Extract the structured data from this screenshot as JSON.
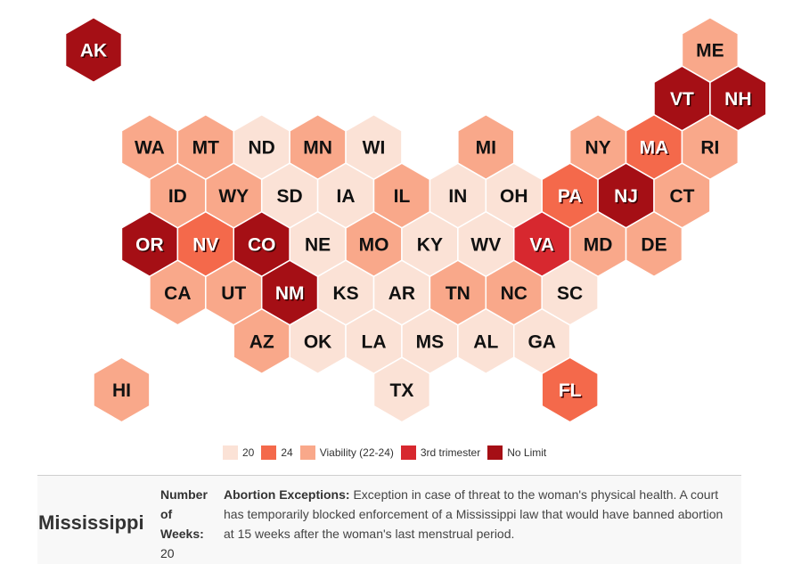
{
  "colors": {
    "20": "#fbe2d6",
    "24": "#f4694b",
    "viability": "#f9a88a",
    "third": "#d7282f",
    "nolimit": "#a50f15"
  },
  "map": {
    "states": [
      {
        "abbr": "AK",
        "cat": "nolimit",
        "row": -1,
        "col": 0
      },
      {
        "abbr": "ME",
        "cat": "viability",
        "row": 0,
        "col": 11
      },
      {
        "abbr": "VT",
        "cat": "nolimit",
        "row": 1,
        "col": 10
      },
      {
        "abbr": "NH",
        "cat": "nolimit",
        "row": 1,
        "col": 11
      },
      {
        "abbr": "WA",
        "cat": "viability",
        "row": 2,
        "col": 1
      },
      {
        "abbr": "MT",
        "cat": "viability",
        "row": 2,
        "col": 2
      },
      {
        "abbr": "ND",
        "cat": "20",
        "row": 2,
        "col": 3
      },
      {
        "abbr": "MN",
        "cat": "viability",
        "row": 2,
        "col": 4
      },
      {
        "abbr": "WI",
        "cat": "20",
        "row": 2,
        "col": 5
      },
      {
        "abbr": "MI",
        "cat": "viability",
        "row": 2,
        "col": 7
      },
      {
        "abbr": "NY",
        "cat": "viability",
        "row": 2,
        "col": 9
      },
      {
        "abbr": "MA",
        "cat": "24",
        "row": 2,
        "col": 10
      },
      {
        "abbr": "RI",
        "cat": "viability",
        "row": 2,
        "col": 11
      },
      {
        "abbr": "ID",
        "cat": "viability",
        "row": 3,
        "col": 1
      },
      {
        "abbr": "WY",
        "cat": "viability",
        "row": 3,
        "col": 2
      },
      {
        "abbr": "SD",
        "cat": "20",
        "row": 3,
        "col": 3
      },
      {
        "abbr": "IA",
        "cat": "20",
        "row": 3,
        "col": 4
      },
      {
        "abbr": "IL",
        "cat": "viability",
        "row": 3,
        "col": 5
      },
      {
        "abbr": "IN",
        "cat": "20",
        "row": 3,
        "col": 6
      },
      {
        "abbr": "OH",
        "cat": "20",
        "row": 3,
        "col": 7
      },
      {
        "abbr": "PA",
        "cat": "24",
        "row": 3,
        "col": 8
      },
      {
        "abbr": "NJ",
        "cat": "nolimit",
        "row": 3,
        "col": 9
      },
      {
        "abbr": "CT",
        "cat": "viability",
        "row": 3,
        "col": 10
      },
      {
        "abbr": "OR",
        "cat": "nolimit",
        "row": 4,
        "col": 1
      },
      {
        "abbr": "NV",
        "cat": "24",
        "row": 4,
        "col": 2
      },
      {
        "abbr": "CO",
        "cat": "nolimit",
        "row": 4,
        "col": 3
      },
      {
        "abbr": "NE",
        "cat": "20",
        "row": 4,
        "col": 4
      },
      {
        "abbr": "MO",
        "cat": "viability",
        "row": 4,
        "col": 5
      },
      {
        "abbr": "KY",
        "cat": "20",
        "row": 4,
        "col": 6
      },
      {
        "abbr": "WV",
        "cat": "20",
        "row": 4,
        "col": 7
      },
      {
        "abbr": "VA",
        "cat": "third",
        "row": 4,
        "col": 8
      },
      {
        "abbr": "MD",
        "cat": "viability",
        "row": 4,
        "col": 9
      },
      {
        "abbr": "DE",
        "cat": "viability",
        "row": 4,
        "col": 10
      },
      {
        "abbr": "CA",
        "cat": "viability",
        "row": 5,
        "col": 1
      },
      {
        "abbr": "UT",
        "cat": "viability",
        "row": 5,
        "col": 2
      },
      {
        "abbr": "NM",
        "cat": "nolimit",
        "row": 5,
        "col": 3
      },
      {
        "abbr": "KS",
        "cat": "20",
        "row": 5,
        "col": 4
      },
      {
        "abbr": "AR",
        "cat": "20",
        "row": 5,
        "col": 5
      },
      {
        "abbr": "TN",
        "cat": "viability",
        "row": 5,
        "col": 6
      },
      {
        "abbr": "NC",
        "cat": "viability",
        "row": 5,
        "col": 7
      },
      {
        "abbr": "SC",
        "cat": "20",
        "row": 5,
        "col": 8
      },
      {
        "abbr": "AZ",
        "cat": "viability",
        "row": 6,
        "col": 3
      },
      {
        "abbr": "OK",
        "cat": "20",
        "row": 6,
        "col": 4
      },
      {
        "abbr": "LA",
        "cat": "20",
        "row": 6,
        "col": 5
      },
      {
        "abbr": "MS",
        "cat": "20",
        "row": 6,
        "col": 6
      },
      {
        "abbr": "AL",
        "cat": "20",
        "row": 6,
        "col": 7
      },
      {
        "abbr": "GA",
        "cat": "20",
        "row": 6,
        "col": 8
      },
      {
        "abbr": "HI",
        "cat": "viability",
        "row": 7,
        "col": 0
      },
      {
        "abbr": "TX",
        "cat": "20",
        "row": 7,
        "col": 5
      },
      {
        "abbr": "FL",
        "cat": "24",
        "row": 7,
        "col": 8
      }
    ]
  },
  "legend": [
    {
      "key": "20",
      "label": "20"
    },
    {
      "key": "24",
      "label": "24"
    },
    {
      "key": "viability",
      "label": "Viability (22-24)"
    },
    {
      "key": "third",
      "label": "3rd trimester"
    },
    {
      "key": "nolimit",
      "label": "No Limit"
    }
  ],
  "info": {
    "state": "Mississippi",
    "weeks_label_1": "Number",
    "weeks_label_2": "of",
    "weeks_label_3": "Weeks:",
    "weeks_value": "20",
    "exceptions_label": "Abortion Exceptions:",
    "exceptions_text": "Exception in case of threat to the woman's physical health. A court has temporarily blocked enforcement of a Mississippi law that would have banned abortion at 15 weeks after the woman's last menstrual period."
  }
}
